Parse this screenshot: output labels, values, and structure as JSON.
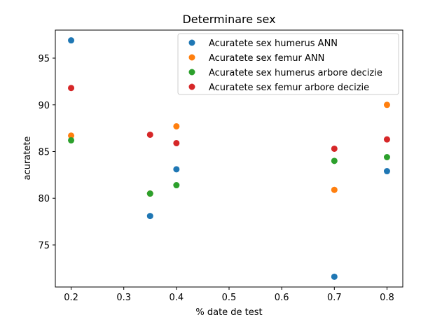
{
  "chart_data": {
    "type": "scatter",
    "title": "Determinare sex",
    "xlabel": "% date de test",
    "ylabel": "acuratete",
    "xlim": [
      0.17,
      0.83
    ],
    "ylim": [
      70.5,
      98.0
    ],
    "xticks": [
      0.2,
      0.3,
      0.4,
      0.5,
      0.6,
      0.7,
      0.8
    ],
    "xtick_labels": [
      "0.2",
      "0.3",
      "0.4",
      "0.5",
      "0.6",
      "0.7",
      "0.8"
    ],
    "yticks": [
      75,
      80,
      85,
      90,
      95
    ],
    "ytick_labels": [
      "75",
      "80",
      "85",
      "90",
      "95"
    ],
    "grid": false,
    "legend_position": "top-right",
    "series": [
      {
        "name": "Acuratete sex humerus ANN",
        "color": "#1f77b4",
        "x": [
          0.2,
          0.35,
          0.4,
          0.7,
          0.8
        ],
        "y": [
          96.9,
          78.1,
          83.1,
          71.6,
          82.9
        ]
      },
      {
        "name": "Acuratete sex femur ANN",
        "color": "#ff7f0e",
        "x": [
          0.2,
          0.35,
          0.4,
          0.7,
          0.8
        ],
        "y": [
          86.7,
          80.5,
          87.7,
          80.9,
          90.0
        ]
      },
      {
        "name": "Acuratete sex humerus arbore decizie",
        "color": "#2ca02c",
        "x": [
          0.2,
          0.35,
          0.4,
          0.7,
          0.8
        ],
        "y": [
          86.2,
          80.5,
          81.4,
          84.0,
          84.4
        ]
      },
      {
        "name": "Acuratete sex femur arbore decizie",
        "color": "#d62728",
        "x": [
          0.2,
          0.35,
          0.4,
          0.7,
          0.8
        ],
        "y": [
          91.8,
          86.8,
          85.9,
          85.3,
          86.3
        ]
      }
    ]
  }
}
